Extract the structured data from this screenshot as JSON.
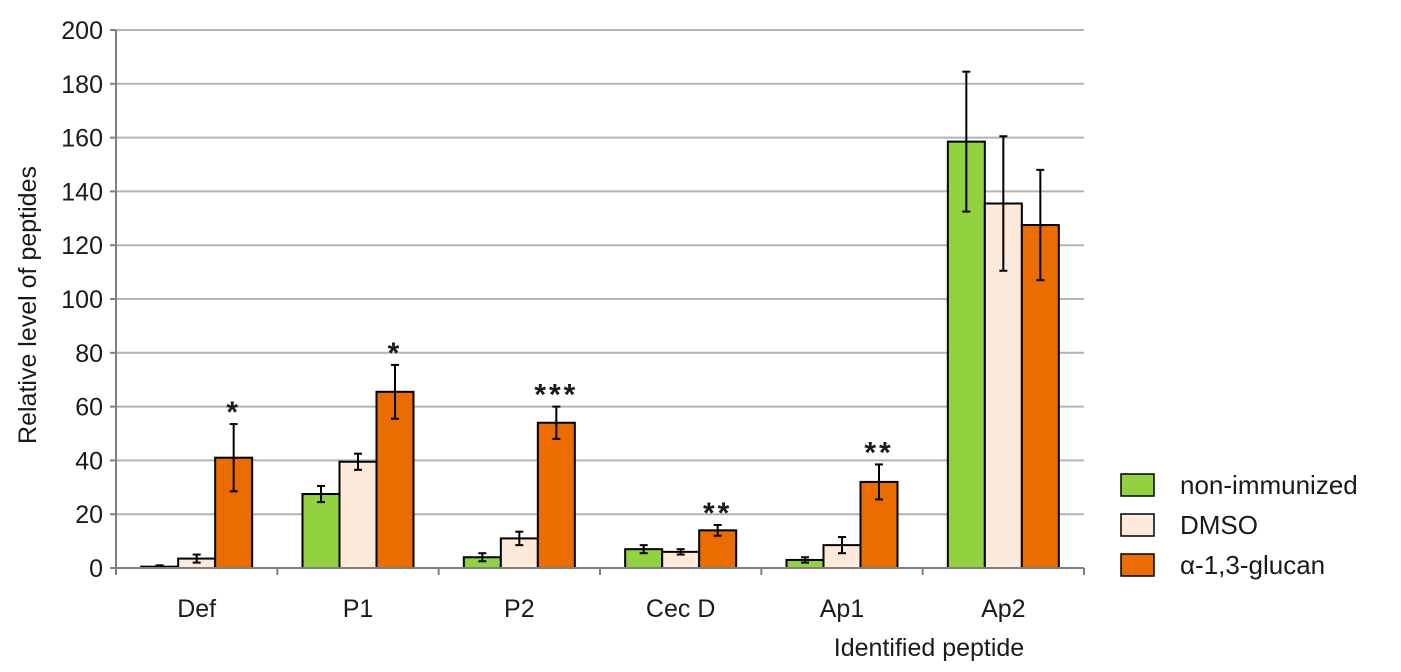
{
  "chart_data": {
    "type": "bar",
    "categories": [
      "Def",
      "P1",
      "P2",
      "Cec D",
      "Ap1",
      "Ap2"
    ],
    "series": [
      {
        "name": "non-immunized",
        "color": "#92d13f",
        "values": [
          0.5,
          27.5,
          4,
          7,
          3,
          158.5
        ],
        "errors": [
          0.5,
          3,
          1.5,
          1.5,
          1,
          26
        ]
      },
      {
        "name": "DMSO",
        "color": "#fdeada",
        "values": [
          3.5,
          39.5,
          11,
          6,
          8.5,
          135.5
        ],
        "errors": [
          1.5,
          3,
          2.5,
          1,
          3,
          25
        ]
      },
      {
        "name": "α-1,3-glucan",
        "color": "#eb6c00",
        "values": [
          41,
          65.5,
          54,
          14,
          32,
          127.5
        ],
        "errors": [
          12.5,
          10,
          6,
          2,
          6.5,
          20.5
        ]
      }
    ],
    "annotations": [
      "*",
      "*",
      "***",
      "**",
      "**",
      ""
    ],
    "xlabel": "Identified peptide",
    "ylabel": "Relative level of peptides",
    "ylim": [
      0,
      200
    ],
    "yticks": [
      "0",
      "20",
      "40",
      "60",
      "80",
      "100",
      "120",
      "140",
      "160",
      "180",
      "200"
    ],
    "grid": true,
    "legend_position": "bottom-right",
    "gridline_color": "#b3b3b3",
    "axis_color": "#7f7f7f"
  }
}
